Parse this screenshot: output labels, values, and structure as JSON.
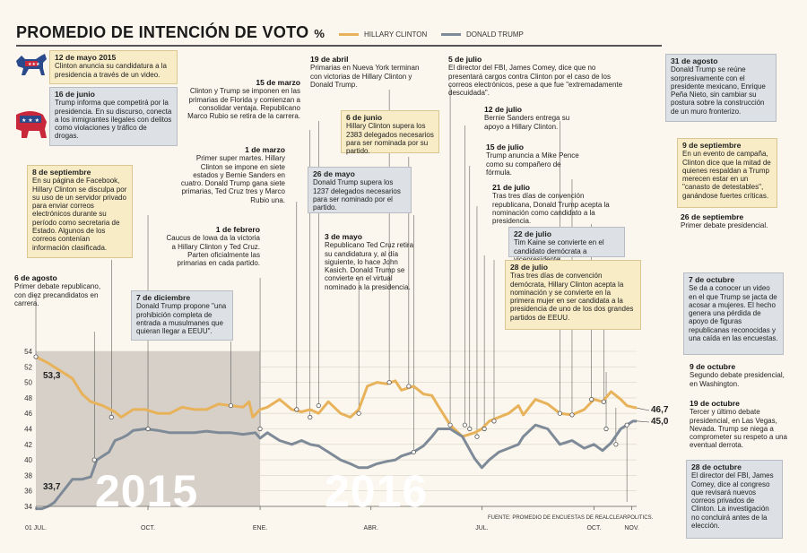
{
  "title": "PROMEDIO DE INTENCIÓN DE VOTO",
  "title_unit": "%",
  "colors": {
    "clinton": "#e8b25a",
    "trump": "#7f8a98",
    "shade": "#cfc9c1"
  },
  "legend": {
    "clinton": "HILLARY CLINTON",
    "trump": "DONALD TRUMP"
  },
  "source": "FUENTE: PROMEDIO DE ENCUESTAS DE REALCLEARPOLITICS.",
  "years": {
    "y2015": "2015",
    "y2016": "2016"
  },
  "end_labels": {
    "clinton_start": "53,3",
    "trump_start": "33,7",
    "clinton_end": "46,7",
    "trump_end": "45,0"
  },
  "events": {
    "e1": {
      "date": "12 de mayo 2015",
      "text": "Clinton anuncia su candidatura a la presidencia a través de un video."
    },
    "e2": {
      "date": "16 de junio",
      "text": "Trump informa que competirá por la presidencia. En su discurso, conecta a los inmigrantes ilegales con delitos como violaciones y tráfico de drogas."
    },
    "e3": {
      "date": "8 de septiembre",
      "text": "En su página de Facebook, Hillary Clinton se disculpa por su uso de un servidor privado para enviar correos electrónicos durante su período como secretaria de Estado. Algunos de los correos contenían información clasificada."
    },
    "e4": {
      "date": "6 de agosto",
      "text": "Primer debate republicano, con diez precandidatos en carrera."
    },
    "e5": {
      "date": "7 de diciembre",
      "text": "Donald Trump propone \"una prohibición completa de entrada a musulmanes que quieran llegar a EEUU\"."
    },
    "e6": {
      "date": "1 de febrero",
      "text": "Caucus de Iowa da la victoria a Hillary Clinton y Ted Cruz. Parten oficialmente las primarias en cada partido."
    },
    "e7": {
      "date": "1 de marzo",
      "text": "Primer super martes. Hillary Clinton se impone en siete estados y Bernie Sanders en cuatro. Donald Trump gana siete primarias, Ted Cruz tres y Marco Rubio una."
    },
    "e8": {
      "date": "15 de marzo",
      "text": "Clinton y Trump se imponen en las primarias de Florida y comienzan a consolidar ventaja. Republicano Marco Rubio se retira de la carrera."
    },
    "e9": {
      "date": "19 de abril",
      "text": "Primarias en Nueva York terminan con victorias de Hillary Clinton y Donald Trump."
    },
    "e10": {
      "date": "6 de junio",
      "text": "Hillary Clinton supera los 2383 delegados necesarios para ser nominada por su partido."
    },
    "e11": {
      "date": "26 de mayo",
      "text": "Donald Trump supera los 1237 delegados necesarios para ser nominado por el partido."
    },
    "e12": {
      "date": "3 de mayo",
      "text": "Republicano Ted Cruz retira su candidatura y, al día siguiente, lo hace John Kasich. Donald Trump se convierte en el virtual nominado a la presidencia."
    },
    "e13": {
      "date": "5 de julio",
      "text": "El director del FBI, James Comey, dice que no presentará cargos contra Clinton por el caso de los correos electrónicos, pese a que fue \"extremadamente descuidada\"."
    },
    "e14": {
      "date": "12 de julio",
      "text": "Bernie Sanders entrega su apoyo a Hillary Clinton."
    },
    "e15": {
      "date": "15 de julio",
      "text": "Trump anuncia a Mike Pence como su compañero de fórmula."
    },
    "e16": {
      "date": "21 de julio",
      "text": "Tras tres días de convención republicana, Donald Trump acepta la nominación como candidato a la presidencia."
    },
    "e17": {
      "date": "22 de julio",
      "text": "Tim Kaine se convierte en el candidato demócrata a vicepresidente."
    },
    "e18": {
      "date": "28 de julio",
      "text": "Tras tres días de convención demócrata, Hillary Clinton acepta la nominación y se convierte en la primera mujer en ser candidata a la presidencia de uno de los dos grandes partidos de EEUU."
    },
    "e19": {
      "date": "31 de agosto",
      "text": "Donald Trump se reúne sorpresivamente con el presidente mexicano, Enrique Peña Nieto, sin cambiar su postura sobre la construcción de un muro fronterizo."
    },
    "e20": {
      "date": "9 de septiembre",
      "text": "En un evento de campaña, Clinton dice que la mitad de quienes respaldan a Trump merecen estar en un \"canasto de detestables\", ganándose fuertes críticas."
    },
    "e21": {
      "date": "26 de septiembre",
      "text": "Primer debate presidencial."
    },
    "e22": {
      "date": "7 de octubre",
      "text": "Se da a conocer un video en el que Trump se jacta de acosar a mujeres. El hecho genera una pérdida de apoyo de figuras republicanas reconocidas y una caída en las encuestas."
    },
    "e23": {
      "date": "9 de octubre",
      "text": "Segundo debate presidencial, en Washington."
    },
    "e24": {
      "date": "19 de octubre",
      "text": "Tercer y último debate presidencial, en Las Vegas, Nevada. Trump se niega a comprometer su respeto a una eventual derrota."
    },
    "e25": {
      "date": "28 de octubre",
      "text": "El director del FBI, James Comey, dice al congreso que revisará nuevos correos privados de Clinton. La investigación no concluirá antes de la elección."
    }
  },
  "chart_data": {
    "type": "line",
    "title": "PROMEDIO DE INTENCIÓN DE VOTO",
    "ylabel": "%",
    "ylim": [
      34,
      54
    ],
    "yticks": [
      34,
      36,
      38,
      40,
      42,
      44,
      46,
      48,
      50,
      52,
      54
    ],
    "xlim": [
      0,
      493
    ],
    "xticks": [
      {
        "t": 0,
        "label": "01 JUL."
      },
      {
        "t": 92,
        "label": "OCT."
      },
      {
        "t": 184,
        "label": "ENE."
      },
      {
        "t": 275,
        "label": "ABR."
      },
      {
        "t": 366,
        "label": "JUL."
      },
      {
        "t": 458,
        "label": "OCT."
      },
      {
        "t": 489,
        "label": "NOV."
      }
    ],
    "shaded_2015_end_day": 184,
    "series": [
      {
        "name": "Hillary Clinton",
        "x": [
          0,
          10,
          20,
          30,
          38,
          45,
          55,
          65,
          70,
          80,
          90,
          100,
          110,
          120,
          130,
          140,
          150,
          160,
          170,
          175,
          178,
          184,
          190,
          200,
          210,
          218,
          225,
          232,
          240,
          250,
          258,
          265,
          272,
          280,
          288,
          295,
          300,
          310,
          318,
          325,
          330,
          340,
          350,
          360,
          366,
          372,
          380,
          388,
          396,
          400,
          410,
          420,
          430,
          440,
          450,
          458,
          465,
          472,
          480,
          485,
          490,
          493
        ],
        "y": [
          53.3,
          52.5,
          51.5,
          50.5,
          48.5,
          47.5,
          47.0,
          46.2,
          45.5,
          46.5,
          46.5,
          46.0,
          46.0,
          46.8,
          46.5,
          46.5,
          47.2,
          47.0,
          46.8,
          47.5,
          45.5,
          46.5,
          46.8,
          47.8,
          46.5,
          46.2,
          46.5,
          46.0,
          47.5,
          46.0,
          45.5,
          46.5,
          49.5,
          50.0,
          49.8,
          50.2,
          49.0,
          49.5,
          48.5,
          48.3,
          47.0,
          44.5,
          43.0,
          43.5,
          44.0,
          45.0,
          45.5,
          46.0,
          47.0,
          45.8,
          47.8,
          47.2,
          46.0,
          45.8,
          46.5,
          47.8,
          47.5,
          48.8,
          47.8,
          47.0,
          46.8,
          46.7
        ]
      },
      {
        "name": "Donald Trump",
        "x": [
          0,
          5,
          10,
          15,
          20,
          25,
          30,
          38,
          45,
          50,
          55,
          60,
          65,
          70,
          75,
          80,
          90,
          100,
          110,
          120,
          130,
          140,
          150,
          160,
          170,
          180,
          184,
          190,
          200,
          210,
          218,
          225,
          232,
          240,
          250,
          258,
          265,
          272,
          280,
          288,
          295,
          300,
          310,
          318,
          325,
          330,
          340,
          350,
          360,
          366,
          372,
          380,
          388,
          396,
          400,
          410,
          420,
          430,
          440,
          450,
          458,
          465,
          472,
          480,
          485,
          490,
          493
        ],
        "y": [
          33.7,
          33.7,
          34.0,
          34.5,
          35.5,
          36.5,
          37.5,
          37.5,
          37.8,
          40.0,
          40.5,
          41.0,
          42.5,
          42.8,
          43.2,
          43.8,
          44.0,
          43.8,
          43.5,
          43.5,
          43.5,
          43.7,
          43.5,
          43.5,
          43.3,
          43.5,
          42.8,
          43.5,
          42.5,
          42.0,
          42.5,
          42.0,
          41.8,
          41.0,
          40.0,
          39.5,
          39.0,
          39.0,
          39.5,
          39.8,
          40.0,
          40.5,
          41.0,
          41.8,
          43.0,
          44.0,
          44.0,
          43.0,
          40.2,
          39.0,
          40.0,
          41.0,
          41.5,
          42.0,
          43.0,
          44.5,
          44.0,
          42.0,
          42.5,
          41.5,
          42.0,
          41.2,
          42.2,
          44.0,
          44.5,
          45.0,
          45.0
        ]
      }
    ]
  }
}
